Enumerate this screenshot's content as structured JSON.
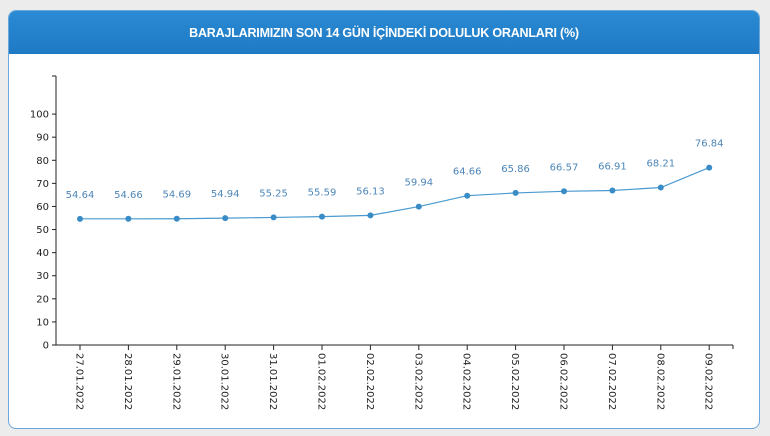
{
  "chart_data": {
    "type": "line",
    "title": "BARAJLARIMIZIN SON 14 GÜN İÇİNDEKİ DOLULUK ORANLARI (%)",
    "xlabel": "",
    "ylabel": "",
    "ylim": [
      0,
      116.5
    ],
    "yticks": [
      0,
      10,
      20,
      30,
      40,
      50,
      60,
      70,
      80,
      90,
      100
    ],
    "categories": [
      "27.01.2022",
      "28.01.2022",
      "29.01.2022",
      "30.01.2022",
      "31.01.2022",
      "01.02.2022",
      "02.02.2022",
      "03.02.2022",
      "04.02.2022",
      "05.02.2022",
      "06.02.2022",
      "07.02.2022",
      "08.02.2022",
      "09.02.2022"
    ],
    "series": [
      {
        "name": "Doluluk",
        "values": [
          54.64,
          54.66,
          54.69,
          54.94,
          55.25,
          55.59,
          56.13,
          59.94,
          64.66,
          65.86,
          66.57,
          66.91,
          68.21,
          76.84
        ]
      }
    ],
    "grid": false,
    "color": "#4a9ad0"
  }
}
